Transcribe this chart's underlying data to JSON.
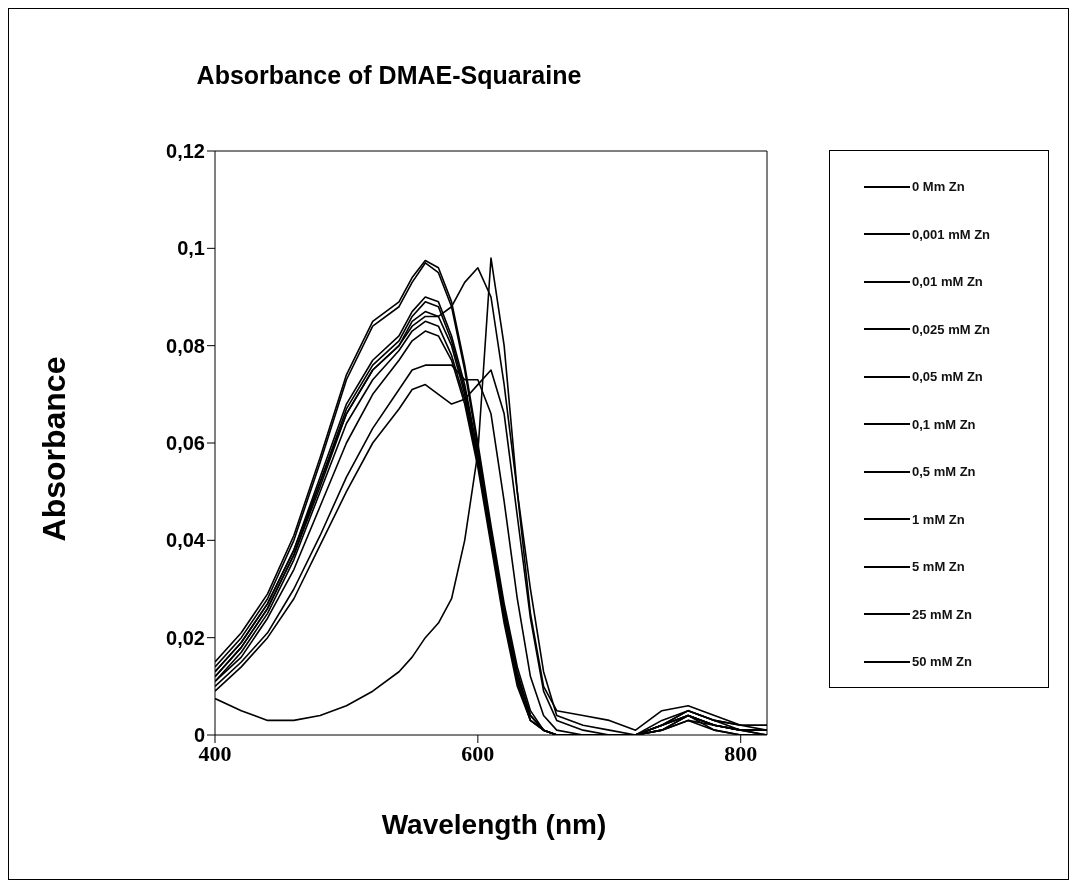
{
  "chart_data": {
    "type": "line",
    "title": "Absorbance of DMAE-Squaraine",
    "xlabel": "Wavelength (nm)",
    "ylabel": "Absorbance",
    "x": [
      400,
      420,
      440,
      460,
      480,
      500,
      520,
      540,
      550,
      560,
      570,
      580,
      590,
      600,
      610,
      620,
      630,
      640,
      650,
      660,
      680,
      700,
      720,
      740,
      760,
      780,
      800,
      820
    ],
    "xlim": [
      400,
      820
    ],
    "xticks": [
      400,
      600,
      800
    ],
    "ylim": [
      0,
      0.12
    ],
    "yticks": [
      {
        "value": 0,
        "label": "0"
      },
      {
        "value": 0.02,
        "label": "0,02"
      },
      {
        "value": 0.04,
        "label": "0,04"
      },
      {
        "value": 0.06,
        "label": "0,06"
      },
      {
        "value": 0.08,
        "label": "0,08"
      },
      {
        "value": 0.1,
        "label": "0,1"
      },
      {
        "value": 0.12,
        "label": "0,12"
      }
    ],
    "grid": false,
    "legend": "right",
    "marker": "none",
    "line_style": "solid",
    "series": [
      {
        "name": "0 Mm Zn",
        "color": "#000000",
        "values": [
          0.015,
          0.021,
          0.029,
          0.041,
          0.057,
          0.074,
          0.085,
          0.089,
          0.094,
          0.0975,
          0.096,
          0.089,
          0.076,
          0.06,
          0.043,
          0.027,
          0.014,
          0.005,
          0.001,
          0,
          0,
          0,
          0,
          0.001,
          0.003,
          0.001,
          0,
          0
        ]
      },
      {
        "name": "0,001 mM Zn",
        "color": "#000000",
        "values": [
          0.014,
          0.02,
          0.028,
          0.04,
          0.056,
          0.073,
          0.084,
          0.088,
          0.093,
          0.097,
          0.095,
          0.088,
          0.075,
          0.059,
          0.042,
          0.026,
          0.013,
          0.004,
          0.001,
          0,
          0,
          0,
          0,
          0.001,
          0.004,
          0.001,
          0,
          0
        ]
      },
      {
        "name": "0,01 mM Zn",
        "color": "#000000",
        "values": [
          0.013,
          0.019,
          0.027,
          0.038,
          0.053,
          0.068,
          0.077,
          0.082,
          0.087,
          0.09,
          0.089,
          0.082,
          0.072,
          0.058,
          0.041,
          0.025,
          0.012,
          0.004,
          0.001,
          0,
          0,
          0,
          0,
          0.001,
          0.004,
          0.002,
          0.001,
          0
        ]
      },
      {
        "name": "0,025 mM Zn",
        "color": "#000000",
        "values": [
          0.012,
          0.018,
          0.026,
          0.037,
          0.052,
          0.067,
          0.076,
          0.081,
          0.086,
          0.089,
          0.088,
          0.081,
          0.071,
          0.057,
          0.04,
          0.024,
          0.012,
          0.004,
          0.001,
          0,
          0,
          0,
          0,
          0.001,
          0.003,
          0.002,
          0.001,
          0
        ]
      },
      {
        "name": "0,05 mM Zn",
        "color": "#000000",
        "values": [
          0.012,
          0.018,
          0.026,
          0.037,
          0.051,
          0.066,
          0.075,
          0.08,
          0.085,
          0.087,
          0.086,
          0.08,
          0.07,
          0.056,
          0.04,
          0.024,
          0.011,
          0.003,
          0.001,
          0,
          0,
          0,
          0,
          0.002,
          0.004,
          0.002,
          0.001,
          0.001
        ]
      },
      {
        "name": "0,1 mM Zn",
        "color": "#000000",
        "values": [
          0.011,
          0.017,
          0.025,
          0.036,
          0.05,
          0.064,
          0.073,
          0.079,
          0.083,
          0.085,
          0.084,
          0.078,
          0.069,
          0.056,
          0.04,
          0.024,
          0.011,
          0.003,
          0.001,
          0,
          0,
          0,
          0,
          0.002,
          0.004,
          0.002,
          0.001,
          0.001
        ]
      },
      {
        "name": "0,5 mM Zn",
        "color": "#000000",
        "values": [
          0.011,
          0.016,
          0.024,
          0.034,
          0.047,
          0.06,
          0.07,
          0.077,
          0.081,
          0.083,
          0.082,
          0.077,
          0.068,
          0.055,
          0.039,
          0.023,
          0.01,
          0.003,
          0.001,
          0,
          0,
          0,
          0,
          0.002,
          0.004,
          0.002,
          0.001,
          0.001
        ]
      },
      {
        "name": "1 mM Zn",
        "color": "#000000",
        "values": [
          0.01,
          0.015,
          0.021,
          0.03,
          0.041,
          0.053,
          0.063,
          0.071,
          0.075,
          0.076,
          0.076,
          0.076,
          0.073,
          0.073,
          0.066,
          0.048,
          0.028,
          0.012,
          0.004,
          0.001,
          0,
          0,
          0,
          0.002,
          0.005,
          0.003,
          0.001,
          0.001
        ]
      },
      {
        "name": "5 mM Zn",
        "color": "#000000",
        "values": [
          0.009,
          0.014,
          0.02,
          0.028,
          0.039,
          0.05,
          0.06,
          0.067,
          0.071,
          0.072,
          0.07,
          0.068,
          0.069,
          0.072,
          0.075,
          0.066,
          0.045,
          0.024,
          0.009,
          0.003,
          0.001,
          0,
          0,
          0.002,
          0.005,
          0.003,
          0.002,
          0.001
        ]
      },
      {
        "name": "25 mM Zn",
        "color": "#000000",
        "values": [
          0.013,
          0.019,
          0.027,
          0.038,
          0.052,
          0.066,
          0.075,
          0.08,
          0.084,
          0.086,
          0.086,
          0.088,
          0.093,
          0.096,
          0.09,
          0.072,
          0.05,
          0.03,
          0.013,
          0.004,
          0.002,
          0.001,
          0,
          0.003,
          0.005,
          0.003,
          0.002,
          0.002
        ]
      },
      {
        "name": "50 mM Zn",
        "color": "#000000",
        "values": [
          0.0075,
          0.005,
          0.003,
          0.003,
          0.004,
          0.006,
          0.009,
          0.013,
          0.016,
          0.02,
          0.023,
          0.028,
          0.04,
          0.058,
          0.098,
          0.08,
          0.05,
          0.025,
          0.01,
          0.005,
          0.004,
          0.003,
          0.001,
          0.005,
          0.006,
          0.004,
          0.002,
          0.002
        ]
      }
    ]
  }
}
